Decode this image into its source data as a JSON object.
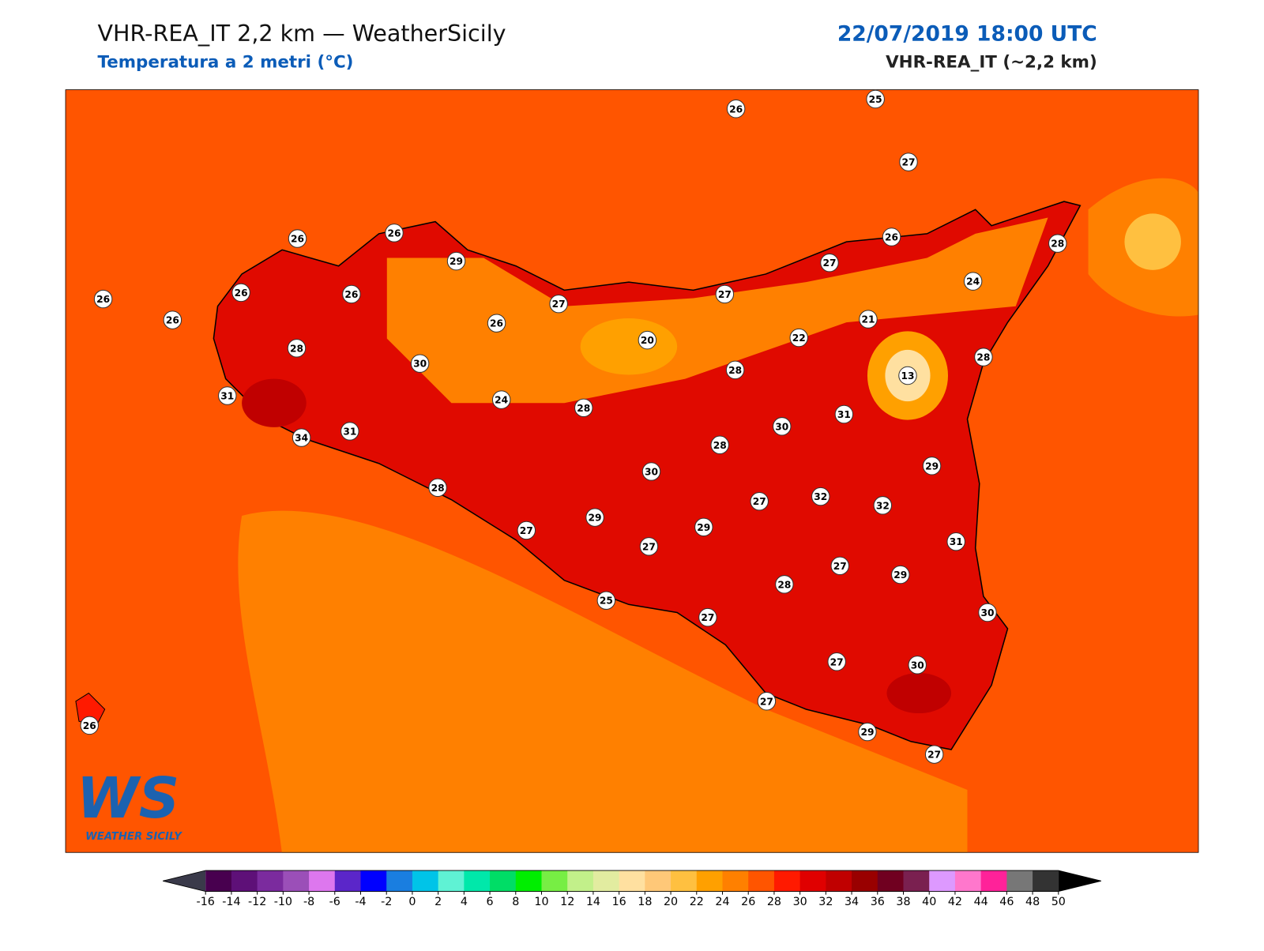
{
  "header": {
    "title": "VHR-REA_IT 2,2 km — WeatherSicily",
    "subtitle": "Temperatura a 2 metri (°C)",
    "datetime": "22/07/2019 18:00 UTC",
    "model": "VHR-REA_IT (~2,2 km)"
  },
  "map": {
    "stations": [
      26,
      25,
      27,
      26,
      26,
      29,
      26,
      26,
      26,
      26,
      27,
      26,
      27,
      27,
      26,
      28,
      24,
      20,
      22,
      21,
      28,
      30,
      28,
      28,
      13,
      31,
      24,
      28,
      30,
      31,
      34,
      31,
      28,
      29,
      30,
      28,
      27,
      32,
      32,
      29,
      29,
      27,
      27,
      31,
      27,
      29,
      28,
      25,
      27,
      30,
      27,
      30,
      27,
      29,
      27,
      26
    ]
  },
  "logo": {
    "mark": "WS",
    "text": "WEATHER SICILY"
  },
  "colorbar": {
    "ticks": [
      -16,
      -14,
      -12,
      -10,
      -8,
      -6,
      -4,
      -2,
      0,
      2,
      4,
      6,
      8,
      10,
      12,
      14,
      16,
      18,
      20,
      22,
      24,
      26,
      28,
      30,
      32,
      34,
      36,
      38,
      40,
      42,
      44,
      46,
      48,
      50
    ],
    "colors": [
      "#48004f",
      "#5e1078",
      "#7b2b9e",
      "#9b4fb8",
      "#dd77ee",
      "#5b26c9",
      "#0000ff",
      "#1a7ee0",
      "#00c4e8",
      "#5ff2d4",
      "#00e8aa",
      "#00dd66",
      "#00ee00",
      "#77ee44",
      "#c2f08a",
      "#e2eca0",
      "#ffe0a0",
      "#ffc878",
      "#ffc040",
      "#ffa000",
      "#ff8000",
      "#ff5500",
      "#ff1a00",
      "#e00000",
      "#c00000",
      "#990000",
      "#700020",
      "#7a2050",
      "#dd99ff",
      "#ff77cc",
      "#ff2299",
      "#777777",
      "#333333"
    ],
    "under_color": "#3a3a4a",
    "over_color": "#000000"
  }
}
